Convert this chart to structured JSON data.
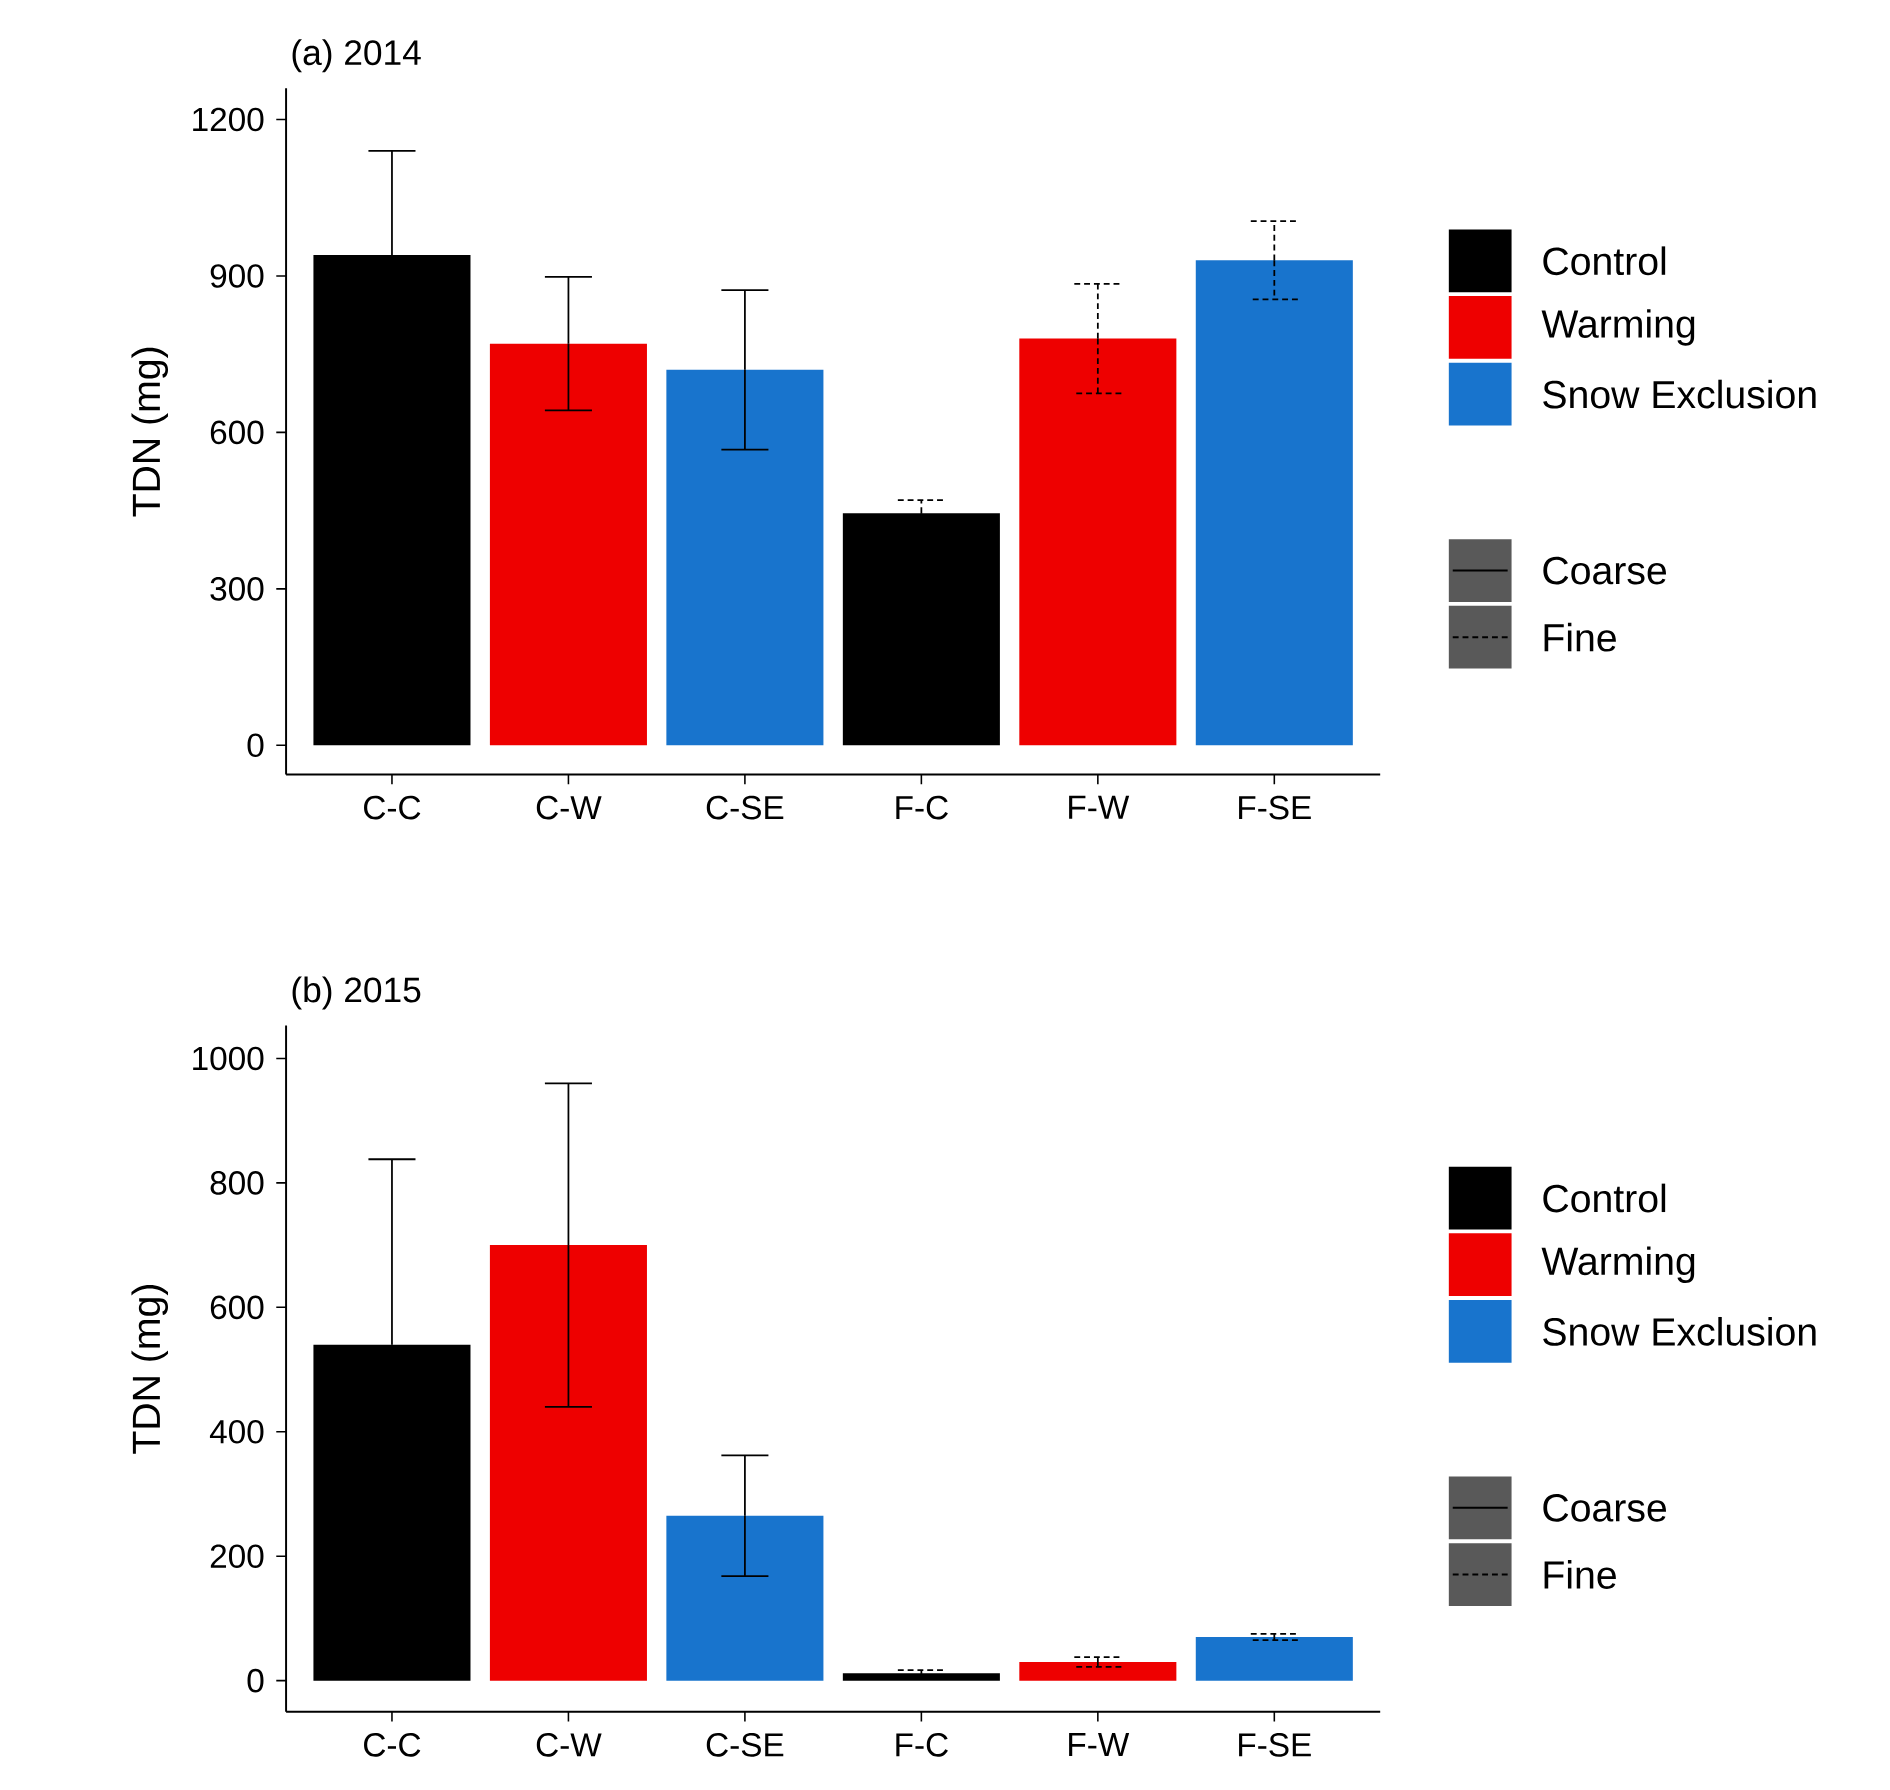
{
  "chart_data": [
    {
      "type": "bar",
      "title": "(a) 2014",
      "ylabel": "TDN (mg)",
      "categories": [
        "C-C",
        "C-W",
        "C-SE",
        "F-C",
        "F-W",
        "F-SE"
      ],
      "ylim": [
        -56,
        1260
      ],
      "yticks": [
        0,
        300,
        600,
        900,
        1200
      ],
      "legend": "right",
      "annotations": [
        "Control",
        "Warming",
        "Snow Exclusion"
      ],
      "series": [
        {
          "name": "Coarse",
          "line_style": "solid",
          "values": [
            940,
            770,
            720,
            null,
            null,
            null
          ],
          "errors": [
            200,
            128,
            153,
            null,
            null,
            null
          ],
          "colors": [
            "#000000",
            "#ee0000",
            "#1874cd",
            null,
            null,
            null
          ]
        },
        {
          "name": "Fine",
          "line_style": "dashed",
          "values": [
            null,
            null,
            null,
            445,
            780,
            930
          ],
          "errors": [
            null,
            null,
            null,
            25,
            105,
            75
          ],
          "colors": [
            null,
            null,
            null,
            "#000000",
            "#ee0000",
            "#1874cd"
          ]
        }
      ]
    },
    {
      "type": "bar",
      "title": "(b) 2015",
      "ylabel": "TDN (mg)",
      "categories": [
        "C-C",
        "C-W",
        "C-SE",
        "F-C",
        "F-W",
        "F-SE"
      ],
      "ylim": [
        -50,
        1053
      ],
      "yticks": [
        0,
        200,
        400,
        600,
        800,
        1000
      ],
      "legend": "right",
      "annotations": [
        "Control",
        "Warming",
        "Snow Exclusion"
      ],
      "series": [
        {
          "name": "Coarse",
          "line_style": "solid",
          "values": [
            540,
            700,
            265,
            null,
            null,
            null
          ],
          "errors": [
            298,
            260,
            97,
            null,
            null,
            null
          ],
          "colors": [
            "#000000",
            "#ee0000",
            "#1874cd",
            null,
            null,
            null
          ]
        },
        {
          "name": "Fine",
          "line_style": "dashed",
          "values": [
            null,
            null,
            null,
            12,
            30,
            70
          ],
          "errors": [
            null,
            null,
            null,
            5,
            8,
            5
          ],
          "colors": [
            null,
            null,
            null,
            "#000000",
            "#ee0000",
            "#1874cd"
          ]
        }
      ]
    }
  ]
}
